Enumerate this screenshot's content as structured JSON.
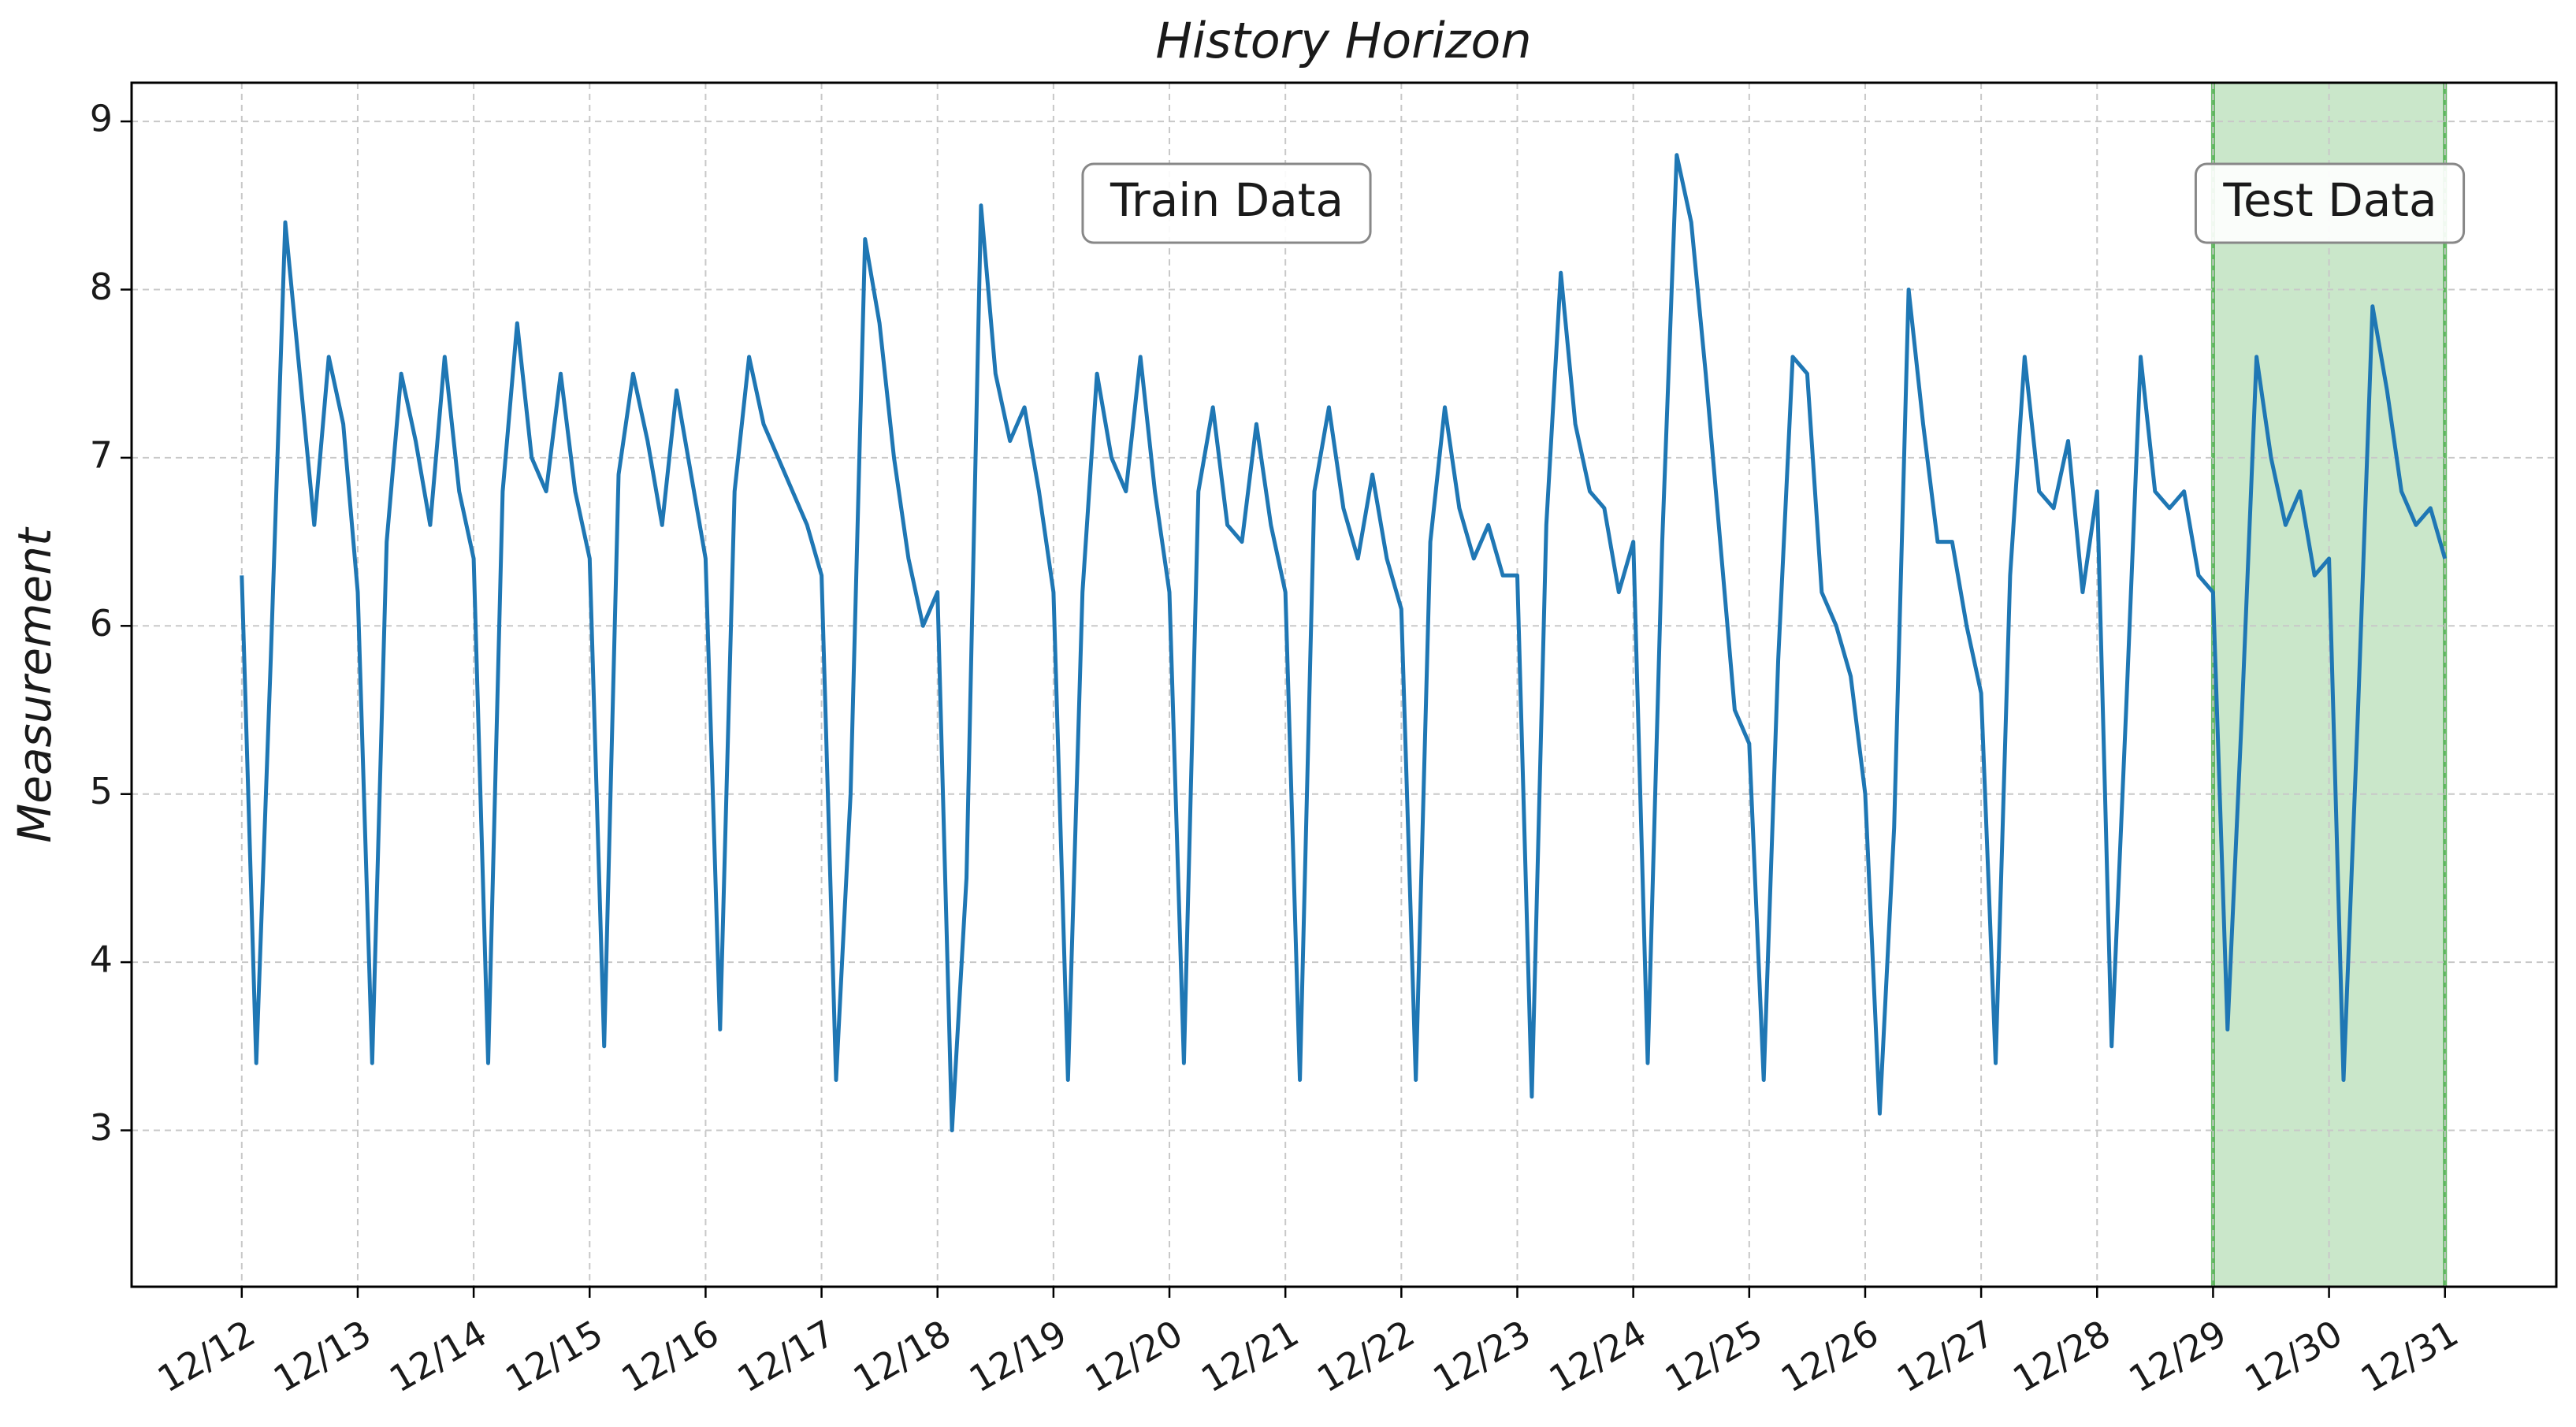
{
  "chart_data": {
    "type": "line",
    "title": "History Horizon",
    "y_label": "Measurement",
    "x": [
      0,
      0.125,
      0.25,
      0.375,
      0.5,
      0.625,
      0.75,
      0.875,
      1,
      1.125,
      1.25,
      1.375,
      1.5,
      1.625,
      1.75,
      1.875,
      2,
      2.125,
      2.25,
      2.375,
      2.5,
      2.625,
      2.75,
      2.875,
      3,
      3.125,
      3.25,
      3.375,
      3.5,
      3.625,
      3.75,
      3.875,
      4,
      4.125,
      4.25,
      4.375,
      4.5,
      4.625,
      4.75,
      4.875,
      5,
      5.125,
      5.25,
      5.375,
      5.5,
      5.625,
      5.75,
      5.875,
      6,
      6.125,
      6.25,
      6.375,
      6.5,
      6.625,
      6.75,
      6.875,
      7,
      7.125,
      7.25,
      7.375,
      7.5,
      7.625,
      7.75,
      7.875,
      8,
      8.125,
      8.25,
      8.375,
      8.5,
      8.625,
      8.75,
      8.875,
      9,
      9.125,
      9.25,
      9.375,
      9.5,
      9.625,
      9.75,
      9.875,
      10,
      10.125,
      10.25,
      10.375,
      10.5,
      10.625,
      10.75,
      10.875,
      11,
      11.125,
      11.25,
      11.375,
      11.5,
      11.625,
      11.75,
      11.875,
      12,
      12.125,
      12.25,
      12.375,
      12.5,
      12.625,
      12.75,
      12.875,
      13,
      13.125,
      13.25,
      13.375,
      13.5,
      13.625,
      13.75,
      13.875,
      14,
      14.125,
      14.25,
      14.375,
      14.5,
      14.625,
      14.75,
      14.875,
      15,
      15.125,
      15.25,
      15.375,
      15.5,
      15.625,
      15.75,
      15.875,
      16,
      16.125,
      16.25,
      16.375,
      16.5,
      16.625,
      16.75,
      16.875,
      17,
      17.125,
      17.25,
      17.375,
      17.5,
      17.625,
      17.75,
      17.875,
      18,
      18.125,
      18.25,
      18.375,
      18.5,
      18.625,
      18.75,
      18.875,
      19
    ],
    "series": [
      {
        "name": "Measurement",
        "color": "#1f77b4",
        "values": [
          6.3,
          3.4,
          5.8,
          8.4,
          7.5,
          6.6,
          7.6,
          7.2,
          6.2,
          3.4,
          6.5,
          7.5,
          7.1,
          6.6,
          7.6,
          6.8,
          6.4,
          3.4,
          6.8,
          7.8,
          7.0,
          6.8,
          7.5,
          6.8,
          6.4,
          3.5,
          6.9,
          7.5,
          7.1,
          6.6,
          7.4,
          6.9,
          6.4,
          3.6,
          6.8,
          7.6,
          7.2,
          7.0,
          6.8,
          6.6,
          6.3,
          3.3,
          5.0,
          8.3,
          7.8,
          7.0,
          6.4,
          6.0,
          6.2,
          3.0,
          4.5,
          8.5,
          7.5,
          7.1,
          7.3,
          6.8,
          6.2,
          3.3,
          6.2,
          7.5,
          7.0,
          6.8,
          7.6,
          6.8,
          6.2,
          3.4,
          6.8,
          7.3,
          6.6,
          6.5,
          7.2,
          6.6,
          6.2,
          3.3,
          6.8,
          7.3,
          6.7,
          6.4,
          6.9,
          6.4,
          6.1,
          3.3,
          6.5,
          7.3,
          6.7,
          6.4,
          6.6,
          6.3,
          6.3,
          3.2,
          6.6,
          8.1,
          7.2,
          6.8,
          6.7,
          6.2,
          6.5,
          3.4,
          6.5,
          8.8,
          8.4,
          7.5,
          6.5,
          5.5,
          5.3,
          3.3,
          5.8,
          7.6,
          7.5,
          6.2,
          6.0,
          5.7,
          5.0,
          3.1,
          4.8,
          8.0,
          7.2,
          6.5,
          6.5,
          6.0,
          5.6,
          3.4,
          6.3,
          7.6,
          6.8,
          6.7,
          7.1,
          6.2,
          6.8,
          3.5,
          5.5,
          7.6,
          6.8,
          6.7,
          6.8,
          6.3,
          6.2,
          3.6,
          5.5,
          7.6,
          7.0,
          6.6,
          6.8,
          6.3,
          6.4,
          3.3,
          5.5,
          7.9,
          7.4,
          6.8,
          6.6,
          6.7,
          6.4
        ]
      }
    ],
    "xlim": [
      -0.95,
      19.96
    ],
    "ylim": [
      2.07,
      9.23
    ],
    "xticks": [
      {
        "value": 0,
        "label": "12/12"
      },
      {
        "value": 1,
        "label": "12/13"
      },
      {
        "value": 2,
        "label": "12/14"
      },
      {
        "value": 3,
        "label": "12/15"
      },
      {
        "value": 4,
        "label": "12/16"
      },
      {
        "value": 5,
        "label": "12/17"
      },
      {
        "value": 6,
        "label": "12/18"
      },
      {
        "value": 7,
        "label": "12/19"
      },
      {
        "value": 8,
        "label": "12/20"
      },
      {
        "value": 9,
        "label": "12/21"
      },
      {
        "value": 10,
        "label": "12/22"
      },
      {
        "value": 11,
        "label": "12/23"
      },
      {
        "value": 12,
        "label": "12/24"
      },
      {
        "value": 13,
        "label": "12/25"
      },
      {
        "value": 14,
        "label": "12/26"
      },
      {
        "value": 15,
        "label": "12/27"
      },
      {
        "value": 16,
        "label": "12/28"
      },
      {
        "value": 17,
        "label": "12/29"
      },
      {
        "value": 18,
        "label": "12/30"
      },
      {
        "value": 19,
        "label": "12/31"
      }
    ],
    "yticks": [
      3,
      4,
      5,
      6,
      7,
      8,
      9
    ],
    "grid": true,
    "highlight": {
      "xlim": [
        17,
        19
      ],
      "color": "#2ca02c"
    },
    "annotations": [
      {
        "text": "Train Data"
      },
      {
        "text": "Test Data"
      }
    ]
  }
}
